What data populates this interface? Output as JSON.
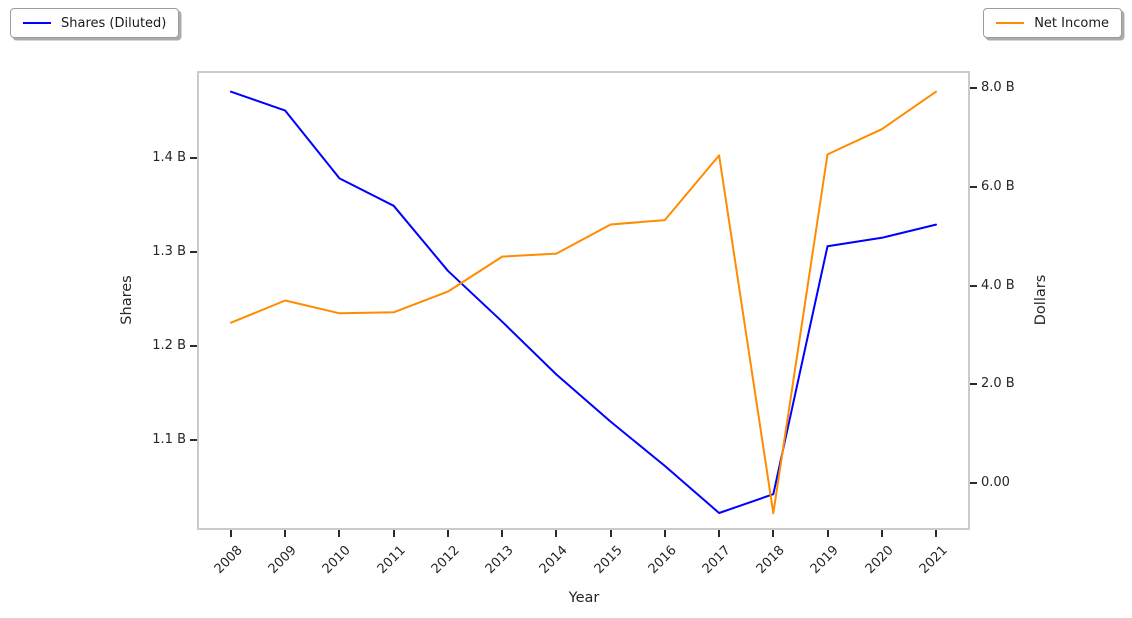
{
  "legend_left": {
    "label": "Shares (Diluted)",
    "color": "#0000ff"
  },
  "legend_right": {
    "label": "Net Income",
    "color": "#ff8c00"
  },
  "axes": {
    "x_label": "Year",
    "left_label": "Shares",
    "right_label": "Dollars"
  },
  "chart_data": {
    "type": "line",
    "title": "",
    "xlabel": "Year",
    "x": [
      2008,
      2009,
      2010,
      2011,
      2012,
      2013,
      2014,
      2015,
      2016,
      2017,
      2018,
      2019,
      2020,
      2021
    ],
    "x_tick_labels": [
      "2008",
      "2009",
      "2010",
      "2011",
      "2012",
      "2013",
      "2014",
      "2015",
      "2016",
      "2017",
      "2018",
      "2019",
      "2020",
      "2021"
    ],
    "grid": false,
    "legend_position": "outside-top-corners",
    "left_axis": {
      "ylabel": "Shares",
      "unit": "billions of shares",
      "ticks": [
        1.1,
        1.2,
        1.3,
        1.4
      ],
      "tick_labels": [
        "1.1 B",
        "1.2 B",
        "1.3 B",
        "1.4 B"
      ],
      "ylim": [
        1.005,
        1.492
      ]
    },
    "right_axis": {
      "ylabel": "Dollars",
      "unit": "billions of dollars",
      "ticks": [
        0,
        2,
        4,
        6,
        8
      ],
      "tick_labels": [
        "0.00",
        "2.0 B",
        "4.0 B",
        "6.0 B",
        "8.0 B"
      ],
      "ylim": [
        -0.95,
        8.35
      ]
    },
    "series": [
      {
        "name": "Shares (Diluted)",
        "axis": "left",
        "color": "#0000ff",
        "values_billions": [
          1.47,
          1.45,
          1.378,
          1.349,
          1.28,
          1.226,
          1.17,
          1.12,
          1.073,
          1.023,
          1.043,
          1.306,
          1.315,
          1.329
        ]
      },
      {
        "name": "Net Income",
        "axis": "right",
        "color": "#ff8c00",
        "values_billions": [
          3.25,
          3.7,
          3.44,
          3.46,
          3.88,
          4.59,
          4.65,
          5.24,
          5.33,
          6.64,
          -0.61,
          6.66,
          7.17,
          7.93
        ]
      }
    ]
  },
  "style": {
    "spine_color": "#cbcbcb",
    "tick_color": "#2b2b2b",
    "text_color": "#262626"
  }
}
